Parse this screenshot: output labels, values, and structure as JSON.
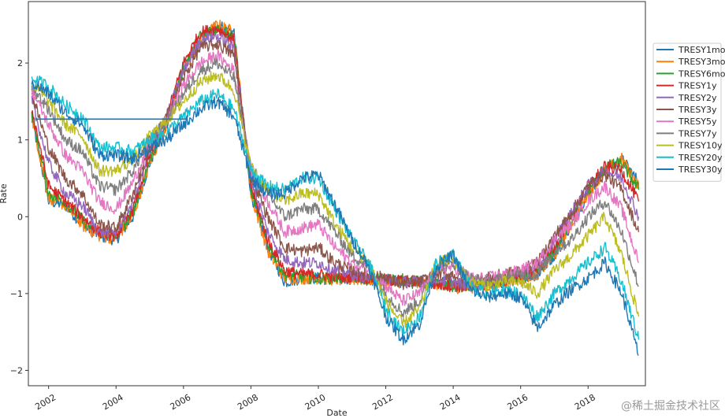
{
  "chart_data": {
    "type": "line",
    "xlabel": "Date",
    "ylabel": "Rate",
    "xlim": [
      2001.4,
      2019.7
    ],
    "ylim": [
      -2.2,
      2.8
    ],
    "x_ticks": [
      2002,
      2004,
      2006,
      2008,
      2010,
      2012,
      2014,
      2016,
      2018
    ],
    "x_tick_labels": [
      "2002",
      "2004",
      "2006",
      "2008",
      "2010",
      "2012",
      "2014",
      "2016",
      "2018"
    ],
    "y_ticks": [
      -2,
      -1,
      0,
      1,
      2
    ],
    "y_tick_labels": [
      "−2",
      "−1",
      "0",
      "1",
      "2"
    ],
    "legend_position": "right",
    "grid": false,
    "x": [
      2001.5,
      2002.0,
      2002.5,
      2003.0,
      2003.5,
      2004.0,
      2004.5,
      2005.0,
      2005.5,
      2006.0,
      2006.5,
      2007.0,
      2007.5,
      2008.0,
      2008.5,
      2009.0,
      2009.5,
      2010.0,
      2010.5,
      2011.0,
      2011.5,
      2012.0,
      2012.5,
      2013.0,
      2013.5,
      2014.0,
      2014.5,
      2015.0,
      2015.5,
      2016.0,
      2016.5,
      2017.0,
      2017.5,
      2018.0,
      2018.5,
      2019.0,
      2019.5
    ],
    "series": [
      {
        "name": "TRESY1mo",
        "color": "#1f77b4",
        "values": [
          1.3,
          0.2,
          0.15,
          -0.1,
          -0.25,
          -0.3,
          0.0,
          0.7,
          1.2,
          1.9,
          2.3,
          2.5,
          2.4,
          0.3,
          -0.4,
          -0.85,
          -0.8,
          -0.8,
          -0.82,
          -0.8,
          -0.82,
          -0.82,
          -0.85,
          -0.85,
          -0.85,
          -0.9,
          -0.9,
          -0.9,
          -0.85,
          -0.8,
          -0.75,
          -0.5,
          -0.1,
          0.3,
          0.6,
          0.75,
          0.45
        ]
      },
      {
        "name": "TRESY3mo",
        "color": "#ff7f0e",
        "values": [
          1.3,
          0.25,
          0.15,
          -0.1,
          -0.25,
          -0.28,
          0.0,
          0.7,
          1.2,
          1.9,
          2.3,
          2.5,
          2.4,
          0.3,
          -0.45,
          -0.8,
          -0.8,
          -0.8,
          -0.82,
          -0.82,
          -0.82,
          -0.85,
          -0.85,
          -0.85,
          -0.88,
          -0.92,
          -0.92,
          -0.9,
          -0.85,
          -0.8,
          -0.75,
          -0.5,
          -0.1,
          0.3,
          0.6,
          0.75,
          0.4
        ]
      },
      {
        "name": "TRESY6mo",
        "color": "#2ca02c",
        "values": [
          1.35,
          0.3,
          0.2,
          -0.05,
          -0.2,
          -0.25,
          0.05,
          0.75,
          1.25,
          1.95,
          2.35,
          2.45,
          2.35,
          0.35,
          -0.35,
          -0.75,
          -0.78,
          -0.8,
          -0.8,
          -0.78,
          -0.8,
          -0.82,
          -0.82,
          -0.85,
          -0.87,
          -0.9,
          -0.9,
          -0.88,
          -0.83,
          -0.78,
          -0.72,
          -0.45,
          -0.05,
          0.35,
          0.65,
          0.7,
          0.35
        ]
      },
      {
        "name": "TRESY1y",
        "color": "#d62728",
        "values": [
          1.4,
          0.4,
          0.2,
          0.0,
          -0.2,
          -0.25,
          0.1,
          0.8,
          1.3,
          2.0,
          2.4,
          2.45,
          2.3,
          0.4,
          -0.3,
          -0.7,
          -0.75,
          -0.75,
          -0.78,
          -0.78,
          -0.8,
          -0.82,
          -0.83,
          -0.85,
          -0.88,
          -0.9,
          -0.92,
          -0.88,
          -0.83,
          -0.75,
          -0.7,
          -0.4,
          0.0,
          0.4,
          0.65,
          0.6,
          0.2
        ]
      },
      {
        "name": "TRESY2y",
        "color": "#9467bd",
        "values": [
          1.5,
          0.7,
          0.3,
          0.15,
          -0.2,
          -0.2,
          0.2,
          0.85,
          1.3,
          1.9,
          2.3,
          2.35,
          2.2,
          0.5,
          -0.2,
          -0.55,
          -0.6,
          -0.6,
          -0.7,
          -0.75,
          -0.8,
          -0.82,
          -0.85,
          -0.85,
          -0.8,
          -0.85,
          -0.9,
          -0.85,
          -0.8,
          -0.72,
          -0.65,
          -0.3,
          0.05,
          0.4,
          0.6,
          0.5,
          0.0
        ]
      },
      {
        "name": "TRESY3y",
        "color": "#8c564b",
        "values": [
          1.6,
          0.9,
          0.5,
          0.3,
          -0.1,
          -0.15,
          0.3,
          0.9,
          1.3,
          1.8,
          2.2,
          2.25,
          2.1,
          0.55,
          0.0,
          -0.4,
          -0.45,
          -0.4,
          -0.6,
          -0.7,
          -0.75,
          -0.8,
          -0.88,
          -0.85,
          -0.75,
          -0.75,
          -0.85,
          -0.8,
          -0.75,
          -0.7,
          -0.6,
          -0.25,
          0.05,
          0.4,
          0.55,
          0.35,
          -0.2
        ]
      },
      {
        "name": "TRESY5y",
        "color": "#e377c2",
        "values": [
          1.65,
          1.2,
          0.8,
          0.6,
          0.2,
          0.1,
          0.45,
          0.95,
          1.25,
          1.7,
          2.0,
          2.1,
          1.9,
          0.6,
          0.2,
          -0.2,
          -0.15,
          -0.1,
          -0.4,
          -0.6,
          -0.7,
          -0.9,
          -1.1,
          -1.0,
          -0.7,
          -0.65,
          -0.8,
          -0.8,
          -0.75,
          -0.7,
          -0.6,
          -0.3,
          -0.1,
          0.2,
          0.4,
          0.1,
          -0.6
        ]
      },
      {
        "name": "TRESY7y",
        "color": "#7f7f7f",
        "values": [
          1.7,
          1.4,
          1.0,
          0.85,
          0.4,
          0.35,
          0.6,
          1.0,
          1.25,
          1.6,
          1.9,
          2.0,
          1.8,
          0.65,
          0.3,
          0.0,
          0.1,
          0.1,
          -0.2,
          -0.5,
          -0.65,
          -1.0,
          -1.25,
          -1.1,
          -0.65,
          -0.6,
          -0.8,
          -0.85,
          -0.8,
          -0.75,
          -0.75,
          -0.45,
          -0.3,
          0.0,
          0.2,
          -0.2,
          -0.9
        ]
      },
      {
        "name": "TRESY10y",
        "color": "#bcbd22",
        "values": [
          1.75,
          1.5,
          1.2,
          1.05,
          0.6,
          0.6,
          0.75,
          1.05,
          1.25,
          1.5,
          1.75,
          1.85,
          1.65,
          0.65,
          0.35,
          0.2,
          0.3,
          0.3,
          -0.1,
          -0.4,
          -0.6,
          -1.1,
          -1.4,
          -1.2,
          -0.6,
          -0.55,
          -0.85,
          -0.9,
          -0.85,
          -0.85,
          -1.0,
          -0.7,
          -0.5,
          -0.25,
          0.0,
          -0.5,
          -1.3
        ]
      },
      {
        "name": "TRESY20y",
        "color": "#17becf",
        "values": [
          1.8,
          1.7,
          1.45,
          1.3,
          0.9,
          0.9,
          0.85,
          1.0,
          1.1,
          1.3,
          1.5,
          1.6,
          1.4,
          0.6,
          0.4,
          0.35,
          0.5,
          0.5,
          0.1,
          -0.3,
          -0.6,
          -1.2,
          -1.5,
          -1.3,
          -0.6,
          -0.5,
          -0.9,
          -1.0,
          -0.95,
          -1.0,
          -1.3,
          -1.0,
          -0.8,
          -0.6,
          -0.4,
          -0.85,
          -1.6
        ]
      },
      {
        "name": "TRESY30y",
        "color": "#1f77b4",
        "values": [
          1.75,
          1.6,
          1.35,
          1.2,
          0.8,
          0.8,
          0.75,
          0.9,
          1.0,
          1.2,
          1.4,
          1.5,
          1.3,
          0.5,
          0.3,
          0.3,
          0.5,
          0.55,
          0.15,
          -0.3,
          -0.65,
          -1.3,
          -1.6,
          -1.4,
          -0.65,
          -0.5,
          -0.95,
          -1.05,
          -1.0,
          -1.05,
          -1.45,
          -1.15,
          -0.95,
          -0.8,
          -0.6,
          -1.0,
          -1.8
        ]
      }
    ],
    "flat_segment": {
      "color": "#1f77b4",
      "x": [
        2001.6,
        2006.1
      ],
      "value": 1.27
    }
  },
  "watermark": "@稀土掘金技术社区"
}
